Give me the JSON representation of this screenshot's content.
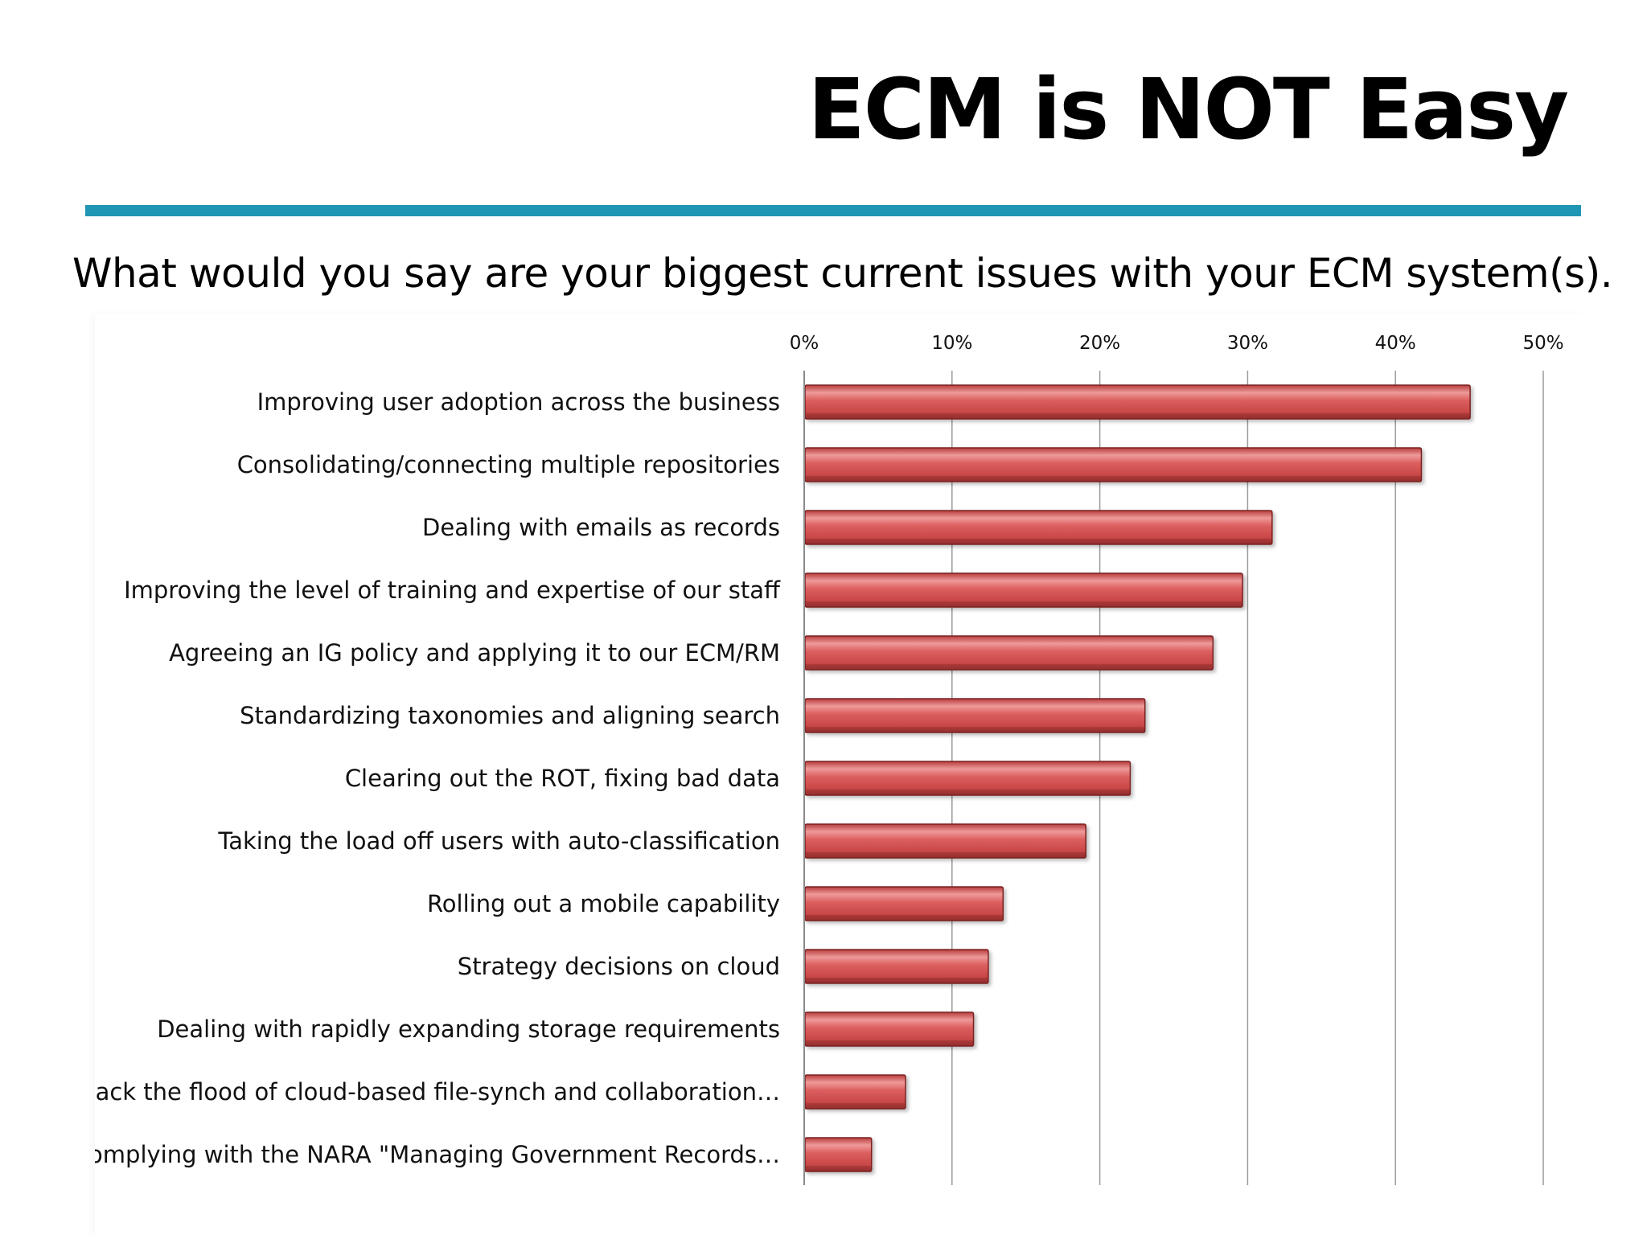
{
  "slide": {
    "title": "ECM is NOT Easy",
    "question": "What would you say are your biggest current issues with your ECM system(s).",
    "accent_color": "#2196b4"
  },
  "chart_data": {
    "type": "bar",
    "orientation": "horizontal",
    "categories": [
      "Improving user adoption across the business",
      "Consolidating/connecting multiple repositories",
      "Dealing with emails as records",
      "Improving the level of training and expertise of our staff",
      "Agreeing an IG policy and applying it to our ECM/RM",
      "Standardizing taxonomies and aligning search",
      "Clearing out the ROT, fixing bad data",
      "Taking the load off users with auto-classification",
      "Rolling out a mobile capability",
      "Strategy decisions on cloud",
      "Dealing with rapidly expanding storage requirements",
      "Holding back the flood of cloud-based file-synch and collaboration…",
      "Complying with the NARA \"Managing Government Records…"
    ],
    "values": [
      45,
      41.7,
      31.6,
      29.6,
      27.6,
      23,
      22,
      19,
      13.4,
      12.4,
      11.4,
      6.8,
      4.5
    ],
    "x_ticks": [
      "0%",
      "10%",
      "20%",
      "30%",
      "40%",
      "50%"
    ],
    "xlim": [
      0,
      50
    ],
    "x_axis_position": "top",
    "grid": true,
    "legend": "none",
    "bar_color": "#d95a5a",
    "bar_edge_color": "#7a2020"
  }
}
